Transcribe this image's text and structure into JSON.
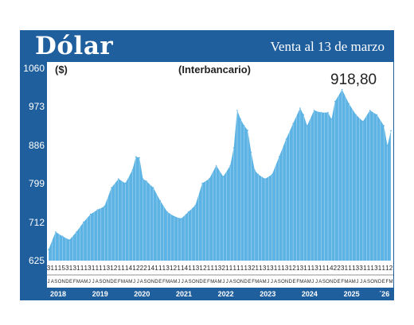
{
  "header": {
    "title": "Dólar",
    "subtitle": "Venta al 13 de marzo"
  },
  "chart_note": "(Interbancario)",
  "unit_label": "($)",
  "last_value_label": "918,80",
  "colors": {
    "header": "#1f5f9e",
    "area": "#5db3e4",
    "grid": "#ffffff"
  },
  "chart_data": {
    "type": "area",
    "title": "Dólar",
    "subtitle": "Venta al 13 de marzo",
    "note": "(Interbancario)",
    "unit": "($)",
    "ylim": [
      625,
      1060
    ],
    "yticks": [
      625,
      712,
      799,
      886,
      973,
      1060
    ],
    "ytick_labels": [
      "625",
      "712",
      "799",
      "886",
      "973",
      "1060"
    ],
    "grid": true,
    "x_start": "2018-01",
    "x_end": "2026-03",
    "year_labels": [
      "2018",
      "2019",
      "2020",
      "2021",
      "2022",
      "2023",
      "2024",
      "2025",
      "´26"
    ],
    "month_letters": "JASONDEFMAMJJASONDEFMAMJJASONDEFMAMJJASONDEFMAMJJASONDEFMAMJJASONDEFMAMJJASONDEFMAMJJASONDEFM",
    "day_ticks": "3111531311131111312111412221411131211411312111321111113211313111312131113111422311133111311121131113",
    "x": [
      "2018-01",
      "2018-03",
      "2018-05",
      "2018-07",
      "2018-09",
      "2018-11",
      "2019-01",
      "2019-03",
      "2019-05",
      "2019-07",
      "2019-09",
      "2019-11",
      "2020-01",
      "2020-02",
      "2020-03",
      "2020-04",
      "2020-05",
      "2020-07",
      "2020-09",
      "2020-11",
      "2021-01",
      "2021-03",
      "2021-05",
      "2021-07",
      "2021-09",
      "2021-11",
      "2022-01",
      "2022-03",
      "2022-05",
      "2022-06",
      "2022-07",
      "2022-08",
      "2022-09",
      "2022-10",
      "2022-11",
      "2022-12",
      "2023-01",
      "2023-03",
      "2023-05",
      "2023-07",
      "2023-09",
      "2023-11",
      "2024-01",
      "2024-02",
      "2024-03",
      "2024-05",
      "2024-07",
      "2024-09",
      "2024-10",
      "2024-11",
      "2025-01",
      "2025-03",
      "2025-05",
      "2025-07",
      "2025-09",
      "2025-11",
      "2026-01",
      "2026-02",
      "2026-03"
    ],
    "values": [
      650,
      690,
      680,
      672,
      690,
      712,
      730,
      740,
      748,
      790,
      810,
      800,
      830,
      860,
      858,
      810,
      805,
      790,
      760,
      735,
      725,
      720,
      735,
      750,
      800,
      810,
      840,
      815,
      840,
      880,
      965,
      945,
      930,
      920,
      870,
      830,
      820,
      810,
      820,
      860,
      900,
      935,
      970,
      955,
      930,
      965,
      960,
      960,
      945,
      985,
      1012,
      980,
      955,
      940,
      965,
      955,
      930,
      885,
      918.8
    ]
  }
}
